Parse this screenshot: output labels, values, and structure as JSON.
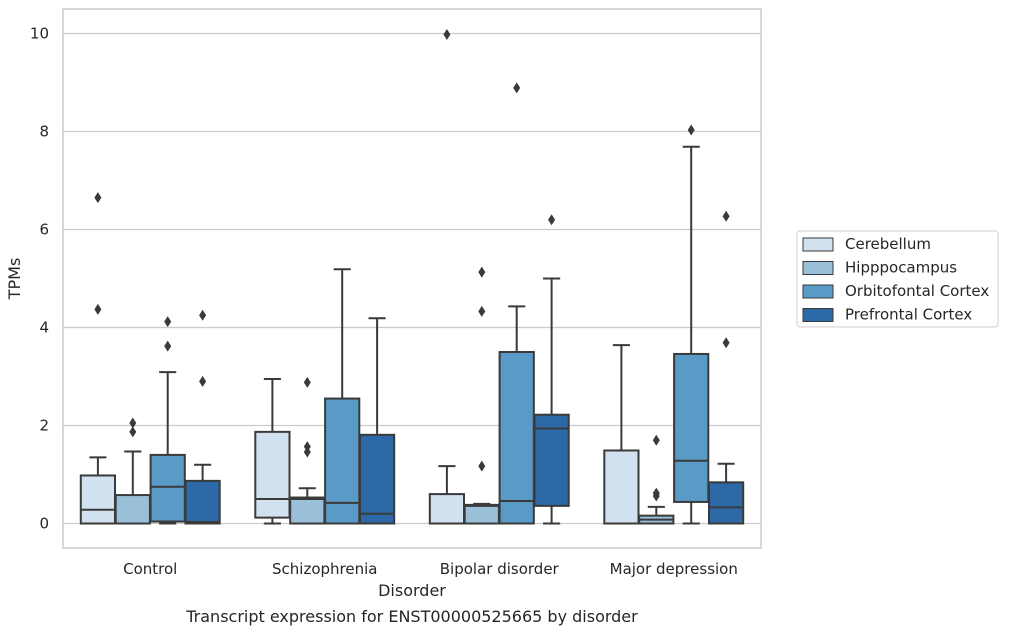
{
  "chart_data": {
    "type": "box",
    "xlabel": "Disorder",
    "ylabel": "TPMs",
    "caption": "Transcript expression for ENST00000525665 by disorder",
    "ylim": [
      -0.5,
      10.5
    ],
    "yticks": [
      0,
      2,
      4,
      6,
      8,
      10
    ],
    "grid": "horizontal",
    "legend_position": "right",
    "categories": [
      "Control",
      "Schizophrenia",
      "Bipolar disorder",
      "Major depression"
    ],
    "series": [
      {
        "name": "Cerebellum",
        "color": "#d1e1f0",
        "boxes": [
          {
            "whislo": 0,
            "q1": 0,
            "med": 0.28,
            "q3": 0.98,
            "whishi": 1.35,
            "fliers": [
              6.65,
              4.37
            ]
          },
          {
            "whislo": 0,
            "q1": 0.12,
            "med": 0.5,
            "q3": 1.87,
            "whishi": 2.95,
            "fliers": []
          },
          {
            "whislo": 0,
            "q1": 0,
            "med": 0,
            "q3": 0.6,
            "whishi": 1.17,
            "fliers": [
              9.98
            ]
          },
          {
            "whislo": 0,
            "q1": 0,
            "med": 0,
            "q3": 1.49,
            "whishi": 3.64,
            "fliers": []
          }
        ]
      },
      {
        "name": "Hipppocampus",
        "color": "#9ac0d9",
        "boxes": [
          {
            "whislo": 0,
            "q1": 0,
            "med": 0,
            "q3": 0.58,
            "whishi": 1.47,
            "fliers": [
              2.05,
              1.87
            ]
          },
          {
            "whislo": 0,
            "q1": 0,
            "med": 0.5,
            "q3": 0.53,
            "whishi": 0.72,
            "fliers": [
              2.88,
              1.57,
              1.46
            ]
          },
          {
            "whislo": 0,
            "q1": 0,
            "med": 0.36,
            "q3": 0.38,
            "whishi": 0.4,
            "fliers": [
              5.13,
              4.33,
              1.17
            ]
          },
          {
            "whislo": 0,
            "q1": 0,
            "med": 0.08,
            "q3": 0.16,
            "whishi": 0.34,
            "fliers": [
              1.7,
              0.62,
              0.56
            ]
          }
        ]
      },
      {
        "name": "Orbitofontal Cortex",
        "color": "#5a9ac7",
        "boxes": [
          {
            "whislo": 0,
            "q1": 0.04,
            "med": 0.75,
            "q3": 1.4,
            "whishi": 3.09,
            "fliers": [
              4.12,
              3.62
            ]
          },
          {
            "whislo": 0,
            "q1": 0,
            "med": 0.42,
            "q3": 2.55,
            "whishi": 5.19,
            "fliers": []
          },
          {
            "whislo": 0,
            "q1": 0,
            "med": 0.46,
            "q3": 3.5,
            "whishi": 4.43,
            "fliers": [
              8.89
            ]
          },
          {
            "whislo": 0,
            "q1": 0.44,
            "med": 1.28,
            "q3": 3.46,
            "whishi": 7.69,
            "fliers": [
              8.03
            ]
          }
        ]
      },
      {
        "name": "Prefrontal Cortex",
        "color": "#2d69a6",
        "boxes": [
          {
            "whislo": 0,
            "q1": 0,
            "med": 0.03,
            "q3": 0.87,
            "whishi": 1.2,
            "fliers": [
              4.25,
              2.9
            ]
          },
          {
            "whislo": 0,
            "q1": 0,
            "med": 0.2,
            "q3": 1.81,
            "whishi": 4.19,
            "fliers": []
          },
          {
            "whislo": 0,
            "q1": 0.36,
            "med": 1.94,
            "q3": 2.22,
            "whishi": 5.0,
            "fliers": [
              6.2
            ]
          },
          {
            "whislo": 0,
            "q1": 0,
            "med": 0.33,
            "q3": 0.84,
            "whishi": 1.22,
            "fliers": [
              6.27,
              3.69
            ]
          }
        ]
      }
    ]
  }
}
